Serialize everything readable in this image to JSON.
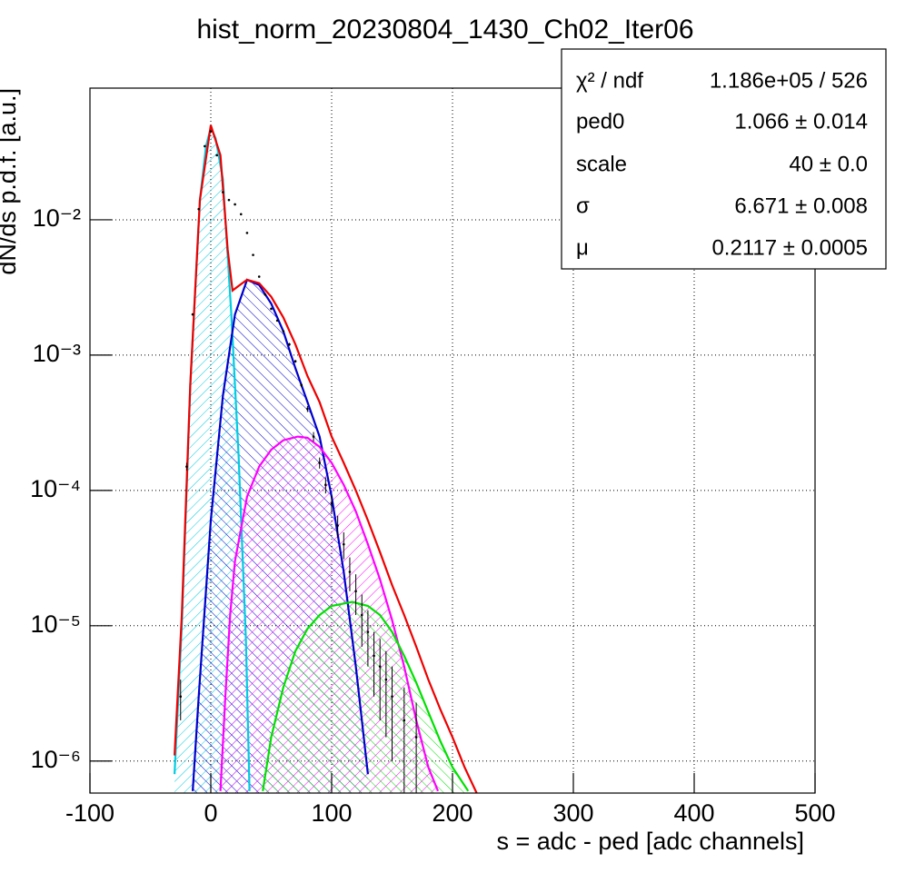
{
  "chart_data": {
    "type": "line",
    "title": "hist_norm_20230804_1430_Ch02_Iter06",
    "xlabel": "s = adc - ped [adc channels]",
    "ylabel": "dN/ds p.d.f. [a.u.]",
    "xlim": [
      -100,
      500
    ],
    "xticks": [
      -100,
      0,
      100,
      200,
      300,
      400,
      500
    ],
    "ylim": [
      5.8e-07,
      0.094
    ],
    "log_y": true,
    "grid": true,
    "yticks": [
      {
        "value": 1e-06,
        "label": "10⁻⁶"
      },
      {
        "value": 1e-05,
        "label": "10⁻⁵"
      },
      {
        "value": 0.0001,
        "label": "10⁻⁴"
      },
      {
        "value": 0.001,
        "label": "10⁻³"
      },
      {
        "value": 0.01,
        "label": "10⁻²"
      }
    ],
    "stats": [
      {
        "name": "χ² / ndf",
        "value": "1.186e+05 / 526"
      },
      {
        "name": "ped0",
        "value": "1.066 ± 0.014"
      },
      {
        "name": "scale",
        "value": "40 ± 0.0"
      },
      {
        "name": "σ",
        "value": "6.671 ± 0.008"
      },
      {
        "name": "μ",
        "value": "0.2117 ± 0.0005"
      }
    ],
    "series": [
      {
        "color": "#00cde0",
        "hatch": true,
        "x": [
          -30,
          -24,
          -17,
          -9,
          -4,
          0,
          4,
          10,
          17,
          23,
          29,
          32
        ],
        "values": [
          8e-07,
          1e-05,
          0.0006,
          0.014,
          0.035,
          0.048,
          0.04,
          0.02,
          0.002,
          0.00018,
          8e-06,
          6e-07
        ]
      },
      {
        "color": "#0000cc",
        "hatch": true,
        "x": [
          -15,
          -10,
          0,
          10,
          20,
          30,
          40,
          50,
          60,
          70,
          80,
          90,
          100,
          110,
          120,
          130
        ],
        "values": [
          6e-07,
          3e-06,
          6e-05,
          0.0005,
          0.002,
          0.0036,
          0.0033,
          0.0024,
          0.0015,
          0.0008,
          0.00045,
          0.00025,
          9e-05,
          2.5e-05,
          5e-06,
          8e-07
        ]
      },
      {
        "color": "#ff00ff",
        "hatch": true,
        "x": [
          8,
          12,
          16,
          20,
          30,
          40,
          50,
          60,
          72,
          80,
          90,
          100,
          110,
          120,
          130,
          140,
          150,
          160,
          170,
          180,
          188
        ],
        "values": [
          6e-07,
          3e-06,
          1.2e-05,
          3e-05,
          9e-05,
          0.00015,
          0.0002,
          0.000235,
          0.00025,
          0.000245,
          0.00021,
          0.00016,
          0.00011,
          7e-05,
          4e-05,
          2.2e-05,
          1.1e-05,
          5e-06,
          2e-06,
          9e-07,
          6e-07
        ]
      },
      {
        "color": "#00e000",
        "hatch": true,
        "x": [
          43,
          50,
          60,
          70,
          80,
          90,
          100,
          117,
          130,
          140,
          150,
          160,
          170,
          180,
          190,
          200,
          213
        ],
        "values": [
          6e-07,
          1.5e-06,
          3.5e-06,
          6.5e-06,
          9.5e-06,
          1.2e-05,
          1.4e-05,
          1.5e-05,
          1.4e-05,
          1.2e-05,
          9e-06,
          6e-06,
          3.8e-06,
          2.3e-06,
          1.4e-06,
          9e-07,
          6e-07
        ]
      },
      {
        "color": "#ee0000",
        "hatch": false,
        "x": [
          -30,
          -24,
          -17,
          -9,
          0,
          8,
          14,
          18,
          24,
          30,
          40,
          50,
          60,
          70,
          80,
          90,
          100,
          110,
          120,
          130,
          140,
          150,
          160,
          170,
          180,
          190,
          200,
          210,
          220
        ],
        "values": [
          1.1e-06,
          1.2e-05,
          0.0006,
          0.014,
          0.05,
          0.03,
          0.006,
          0.003,
          0.0033,
          0.0036,
          0.0034,
          0.0027,
          0.0019,
          0.0012,
          0.0007,
          0.00045,
          0.00025,
          0.00016,
          0.0001,
          6e-05,
          3.5e-05,
          2e-05,
          1.2e-05,
          7e-06,
          4e-06,
          2.4e-06,
          1.5e-06,
          9e-07,
          5.8e-07
        ]
      },
      {
        "color": "#000000",
        "style": "markers",
        "x": [
          -25,
          -20,
          -15,
          -10,
          -5,
          0,
          5,
          10,
          15,
          20,
          25,
          30,
          35,
          40,
          45,
          50,
          55,
          60,
          65,
          70,
          75,
          80,
          85,
          90,
          95,
          100,
          105,
          110,
          115,
          120,
          125,
          130,
          135,
          140,
          145,
          150,
          160,
          170
        ],
        "values": [
          3e-06,
          0.00015,
          0.002,
          0.012,
          0.035,
          0.045,
          0.03,
          0.016,
          0.014,
          0.013,
          0.011,
          0.008,
          0.0055,
          0.0038,
          0.0028,
          0.0022,
          0.0018,
          0.0015,
          0.0012,
          0.0009,
          0.0006,
          0.0004,
          0.00025,
          0.00016,
          0.00011,
          8e-05,
          5.5e-05,
          4e-05,
          2.5e-05,
          1.8e-05,
          1.2e-05,
          9e-06,
          6e-06,
          5e-06,
          4e-06,
          3e-06,
          2e-06,
          1.5e-06
        ],
        "errors": [
          1e-06,
          1e-05,
          3e-05,
          0.0001,
          0.0002,
          0.0002,
          0.0002,
          0.0001,
          0.0001,
          0.0001,
          0.0001,
          8e-05,
          6e-05,
          5e-05,
          4e-05,
          4e-05,
          3e-05,
          3e-05,
          3e-05,
          2e-05,
          2e-05,
          2e-05,
          2e-05,
          1.5e-05,
          1.5e-05,
          1.2e-05,
          1e-05,
          9e-06,
          7e-06,
          6e-06,
          5e-06,
          4e-06,
          3e-06,
          3e-06,
          2.5e-06,
          2e-06,
          1.5e-06,
          1.2e-06
        ]
      }
    ]
  }
}
